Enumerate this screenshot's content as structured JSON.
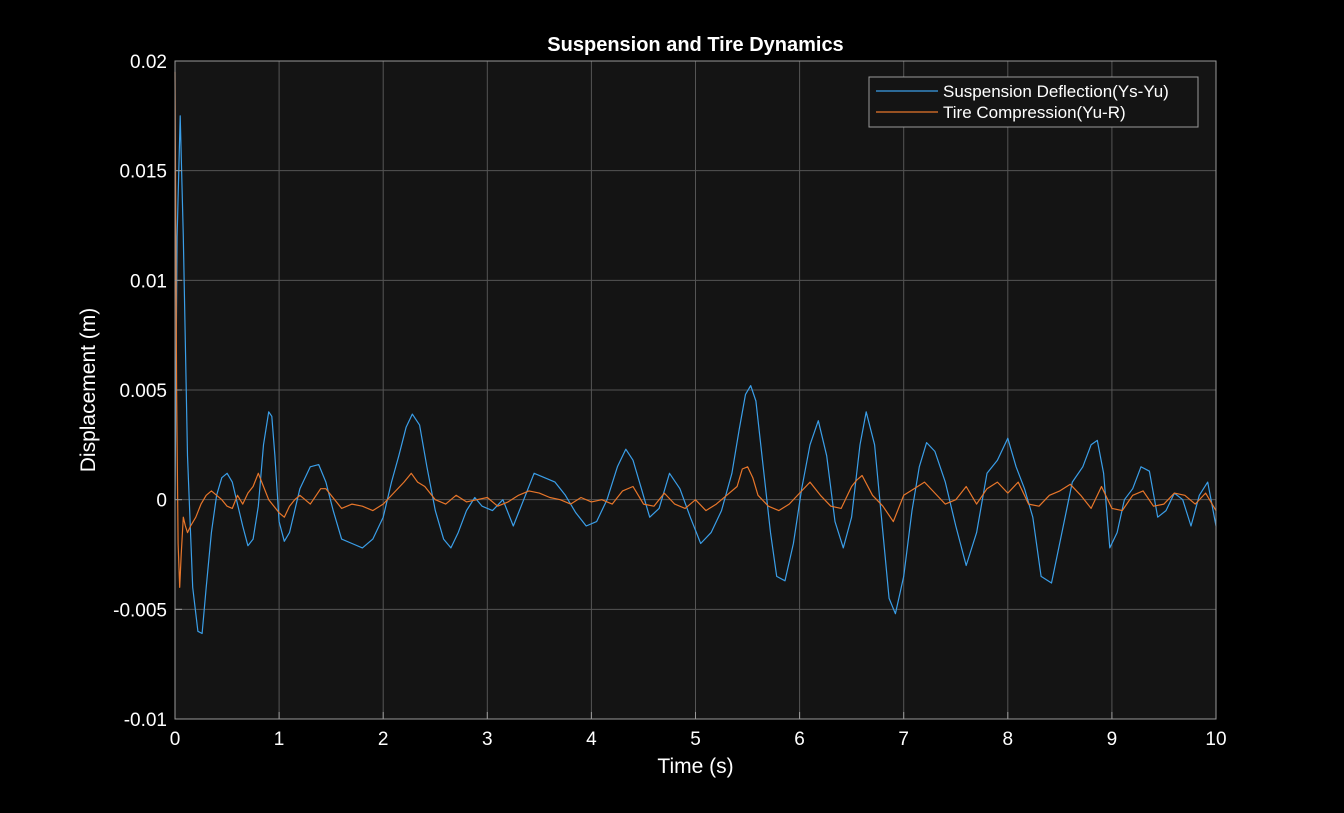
{
  "chart_data": {
    "type": "line",
    "title": "Suspension and Tire Dynamics",
    "xlabel": "Time (s)",
    "ylabel": "Displacement (m)",
    "xlim": [
      0,
      10
    ],
    "ylim": [
      -0.01,
      0.02
    ],
    "xticks": [
      0,
      1,
      2,
      3,
      4,
      5,
      6,
      7,
      8,
      9,
      10
    ],
    "xtick_labels": [
      "0",
      "1",
      "2",
      "3",
      "4",
      "5",
      "6",
      "7",
      "8",
      "9",
      "10"
    ],
    "yticks": [
      -0.01,
      -0.005,
      0,
      0.005,
      0.01,
      0.015,
      0.02
    ],
    "ytick_labels": [
      "-0.01",
      "-0.005",
      "0",
      "0.005",
      "0.01",
      "0.015",
      "0.02"
    ],
    "grid": true,
    "legend_position": "top-right",
    "background": "#000000",
    "plot_background": "#141414",
    "grid_color": "#555555",
    "series": [
      {
        "name": "Suspension Deflection(Ys-Yu)",
        "color": "#3a9ee8",
        "x": [
          0,
          0.02,
          0.05,
          0.08,
          0.12,
          0.17,
          0.22,
          0.26,
          0.3,
          0.35,
          0.4,
          0.45,
          0.5,
          0.55,
          0.6,
          0.65,
          0.7,
          0.75,
          0.8,
          0.85,
          0.9,
          0.93,
          0.96,
          1.0,
          1.05,
          1.1,
          1.15,
          1.2,
          1.3,
          1.38,
          1.45,
          1.52,
          1.6,
          1.7,
          1.8,
          1.9,
          2.0,
          2.08,
          2.15,
          2.22,
          2.28,
          2.35,
          2.42,
          2.5,
          2.58,
          2.65,
          2.72,
          2.8,
          2.88,
          2.95,
          3.05,
          3.15,
          3.25,
          3.35,
          3.45,
          3.55,
          3.65,
          3.75,
          3.85,
          3.95,
          4.05,
          4.15,
          4.25,
          4.33,
          4.4,
          4.48,
          4.56,
          4.65,
          4.75,
          4.85,
          4.95,
          5.05,
          5.15,
          5.25,
          5.35,
          5.42,
          5.48,
          5.53,
          5.58,
          5.65,
          5.72,
          5.78,
          5.86,
          5.94,
          6.02,
          6.1,
          6.18,
          6.26,
          6.34,
          6.42,
          6.5,
          6.58,
          6.64,
          6.72,
          6.8,
          6.86,
          6.92,
          7.0,
          7.08,
          7.15,
          7.22,
          7.3,
          7.4,
          7.5,
          7.6,
          7.7,
          7.8,
          7.9,
          8.0,
          8.08,
          8.16,
          8.24,
          8.32,
          8.42,
          8.52,
          8.62,
          8.72,
          8.8,
          8.86,
          8.92,
          8.98,
          9.05,
          9.12,
          9.2,
          9.28,
          9.36,
          9.44,
          9.52,
          9.6,
          9.68,
          9.76,
          9.84,
          9.92,
          10.0
        ],
        "y": [
          0.0,
          0.012,
          0.0175,
          0.012,
          0.002,
          -0.004,
          -0.006,
          -0.0061,
          -0.004,
          -0.0015,
          0.0002,
          0.001,
          0.0012,
          0.0008,
          -0.0002,
          -0.0012,
          -0.0021,
          -0.0018,
          -0.0003,
          0.0025,
          0.004,
          0.0038,
          0.002,
          -0.001,
          -0.0019,
          -0.0015,
          -0.0005,
          0.0005,
          0.0015,
          0.0016,
          0.0008,
          -0.0005,
          -0.0018,
          -0.002,
          -0.0022,
          -0.0018,
          -0.0008,
          0.0008,
          0.002,
          0.0033,
          0.0039,
          0.0034,
          0.0015,
          -0.0005,
          -0.0018,
          -0.0022,
          -0.0015,
          -0.0005,
          0.0001,
          -0.0003,
          -0.0005,
          0.0,
          -0.0012,
          0.0,
          0.0012,
          0.001,
          0.0008,
          0.0002,
          -0.0006,
          -0.0012,
          -0.001,
          0.0,
          0.0015,
          0.0023,
          0.0018,
          0.0005,
          -0.0008,
          -0.0004,
          0.0012,
          0.0005,
          -0.0008,
          -0.002,
          -0.0015,
          -0.0005,
          0.0012,
          0.0032,
          0.0048,
          0.0052,
          0.0045,
          0.0015,
          -0.0015,
          -0.0035,
          -0.0037,
          -0.002,
          0.0005,
          0.0025,
          0.0036,
          0.002,
          -0.001,
          -0.0022,
          -0.0008,
          0.0025,
          0.004,
          0.0025,
          -0.0015,
          -0.0045,
          -0.0052,
          -0.0035,
          -0.0005,
          0.0015,
          0.0026,
          0.0022,
          0.0008,
          -0.0012,
          -0.003,
          -0.0015,
          0.0012,
          0.0018,
          0.0028,
          0.0015,
          0.0005,
          -0.0008,
          -0.0035,
          -0.0038,
          -0.0015,
          0.0008,
          0.0015,
          0.0025,
          0.0027,
          0.0012,
          -0.0022,
          -0.0015,
          0.0,
          0.0005,
          0.0015,
          0.0013,
          -0.0008,
          -0.0005,
          0.0003,
          0.0,
          -0.0012,
          0.0002,
          0.0008,
          -0.0012
        ]
      },
      {
        "name": "Tire Compression(Yu-R)",
        "color": "#e8762a",
        "x": [
          0,
          0.015,
          0.03,
          0.045,
          0.06,
          0.08,
          0.1,
          0.12,
          0.15,
          0.2,
          0.25,
          0.3,
          0.35,
          0.4,
          0.45,
          0.5,
          0.55,
          0.6,
          0.65,
          0.7,
          0.75,
          0.8,
          0.85,
          0.9,
          0.95,
          1.0,
          1.05,
          1.1,
          1.15,
          1.2,
          1.3,
          1.4,
          1.45,
          1.5,
          1.6,
          1.7,
          1.8,
          1.9,
          2.0,
          2.1,
          2.2,
          2.27,
          2.33,
          2.4,
          2.5,
          2.6,
          2.7,
          2.8,
          2.9,
          3.0,
          3.1,
          3.2,
          3.3,
          3.4,
          3.5,
          3.6,
          3.7,
          3.8,
          3.9,
          4.0,
          4.1,
          4.2,
          4.3,
          4.4,
          4.5,
          4.6,
          4.7,
          4.8,
          4.9,
          5.0,
          5.1,
          5.2,
          5.3,
          5.4,
          5.45,
          5.5,
          5.55,
          5.6,
          5.7,
          5.8,
          5.9,
          6.0,
          6.1,
          6.2,
          6.3,
          6.4,
          6.5,
          6.55,
          6.6,
          6.7,
          6.8,
          6.9,
          7.0,
          7.1,
          7.2,
          7.3,
          7.4,
          7.5,
          7.6,
          7.7,
          7.8,
          7.9,
          8.0,
          8.1,
          8.2,
          8.3,
          8.4,
          8.5,
          8.6,
          8.7,
          8.8,
          8.9,
          9.0,
          9.1,
          9.2,
          9.3,
          9.4,
          9.5,
          9.6,
          9.7,
          9.8,
          9.9,
          10.0
        ],
        "y": [
          0.0195,
          0.005,
          -0.002,
          -0.004,
          -0.0025,
          -0.0008,
          -0.0012,
          -0.0015,
          -0.0012,
          -0.0008,
          -0.0002,
          0.0002,
          0.0004,
          0.0002,
          0.0,
          -0.0003,
          -0.0004,
          0.0002,
          -0.0002,
          0.0003,
          0.0006,
          0.0012,
          0.0006,
          0.0,
          -0.0003,
          -0.0006,
          -0.0008,
          -0.0003,
          0.0,
          0.0002,
          -0.0002,
          0.0005,
          0.0005,
          0.0002,
          -0.0004,
          -0.0002,
          -0.0003,
          -0.0005,
          -0.0002,
          0.0003,
          0.0008,
          0.0012,
          0.0008,
          0.0006,
          0.0,
          -0.0002,
          0.0002,
          -0.0001,
          0.0,
          0.0001,
          -0.0003,
          -0.0001,
          0.0002,
          0.0004,
          0.0003,
          0.0001,
          0.0,
          -0.0002,
          0.0001,
          -0.0001,
          0.0,
          -0.0002,
          0.0004,
          0.0006,
          -0.0002,
          -0.0003,
          0.0003,
          -0.0002,
          -0.0004,
          0.0,
          -0.0005,
          -0.0002,
          0.0002,
          0.0006,
          0.0014,
          0.0015,
          0.001,
          0.0002,
          -0.0003,
          -0.0005,
          -0.0002,
          0.0003,
          0.0008,
          0.0002,
          -0.0003,
          -0.0004,
          0.0006,
          0.0009,
          0.0011,
          0.0002,
          -0.0003,
          -0.001,
          0.0002,
          0.0005,
          0.0008,
          0.0003,
          -0.0002,
          0.0,
          0.0006,
          -0.0002,
          0.0005,
          0.0008,
          0.0003,
          0.0008,
          -0.0002,
          -0.0003,
          0.0002,
          0.0004,
          0.0007,
          0.0002,
          -0.0004,
          0.0006,
          -0.0004,
          -0.0005,
          0.0002,
          0.0004,
          -0.0003,
          -0.0002,
          0.0003,
          0.0002,
          -0.0002,
          0.0003,
          -0.0005
        ]
      }
    ]
  }
}
